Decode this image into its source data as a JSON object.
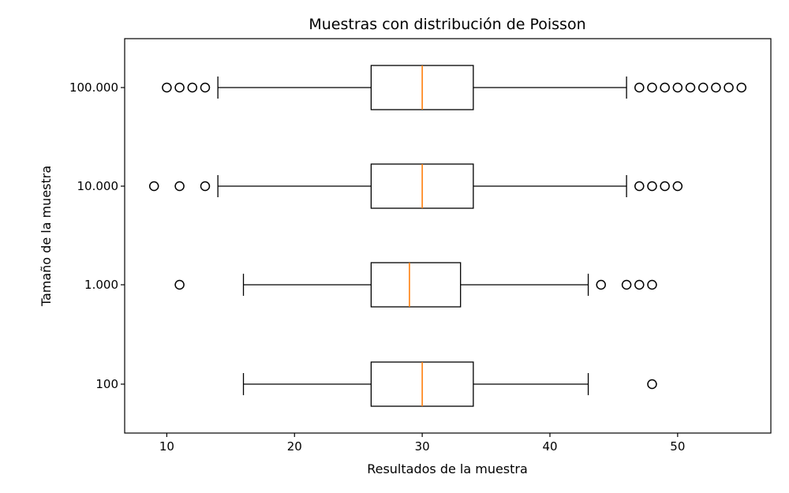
{
  "chart_data": {
    "type": "boxplot",
    "orientation": "horizontal",
    "title": "Muestras con distribución de Poisson",
    "xlabel": "Resultados de la muestra",
    "ylabel": "Tamaño de la muestra",
    "xlim": [
      6.7,
      57.3
    ],
    "xticks": [
      10,
      20,
      30,
      40,
      50
    ],
    "xtick_labels": [
      "10",
      "20",
      "30",
      "40",
      "50"
    ],
    "grid": false,
    "colors": {
      "box": "#000000",
      "median": "#ff7f0e",
      "flier": "#000000"
    },
    "categories": [
      "100",
      "1.000",
      "10.000",
      "100.000"
    ],
    "boxes": [
      {
        "label": "100",
        "whisker_low": 16,
        "q1": 26,
        "median": 30,
        "q3": 34,
        "whisker_high": 43,
        "outliers": [
          48
        ]
      },
      {
        "label": "1.000",
        "whisker_low": 16,
        "q1": 26,
        "median": 29,
        "q3": 33,
        "whisker_high": 43,
        "outliers": [
          11,
          44,
          46,
          47,
          48
        ]
      },
      {
        "label": "10.000",
        "whisker_low": 14,
        "q1": 26,
        "median": 30,
        "q3": 34,
        "whisker_high": 46,
        "outliers": [
          9,
          11,
          13,
          47,
          48,
          49,
          50
        ]
      },
      {
        "label": "100.000",
        "whisker_low": 14,
        "q1": 26,
        "median": 30,
        "q3": 34,
        "whisker_high": 46,
        "outliers": [
          10,
          11,
          12,
          13,
          47,
          48,
          49,
          50,
          51,
          52,
          53,
          54,
          55
        ]
      }
    ]
  }
}
